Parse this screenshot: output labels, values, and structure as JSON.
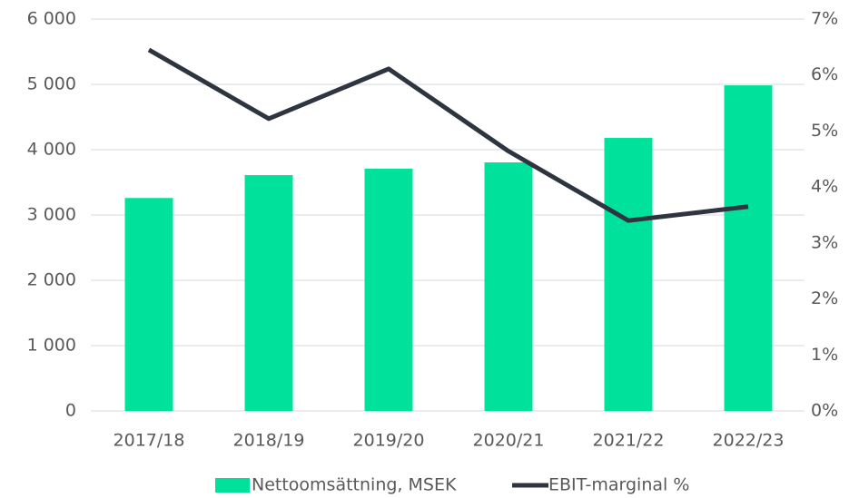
{
  "chart_data": {
    "type": "bar_line",
    "categories": [
      "2017/18",
      "2018/19",
      "2019/20",
      "2020/21",
      "2021/22",
      "2022/23"
    ],
    "series": [
      {
        "name": "Nettoomsättning, MSEK",
        "type": "bar",
        "color": "#00e29b",
        "values": [
          3260,
          3610,
          3710,
          3805,
          4180,
          4985
        ]
      },
      {
        "name": "EBIT-marginal %",
        "type": "line",
        "axis": "y2",
        "color": "#2e3540",
        "values": [
          6.45,
          5.22,
          6.11,
          4.64,
          3.4,
          3.65
        ]
      }
    ],
    "ylim": [
      0,
      6000
    ],
    "yticks": [
      0,
      {
        "value": 1000,
        "label": "1 000"
      },
      {
        "value": 2000,
        "label": "2 000"
      },
      {
        "value": 3000,
        "label": "3 000"
      },
      {
        "value": 4000,
        "label": "4 000"
      },
      {
        "value": 5000,
        "label": "5 000"
      },
      {
        "value": 6000,
        "label": "6 000"
      }
    ],
    "y2lim": [
      0,
      7
    ],
    "y2ticks": [
      {
        "value": 0,
        "label": "0%"
      },
      {
        "value": 1,
        "label": "1%"
      },
      {
        "value": 2,
        "label": "2%"
      },
      {
        "value": 3,
        "label": "3%"
      },
      {
        "value": 4,
        "label": "4%"
      },
      {
        "value": 5,
        "label": "5%"
      },
      {
        "value": 6,
        "label": "6%"
      },
      {
        "value": 7,
        "label": "7%"
      }
    ],
    "grid": true,
    "legend": "bottom"
  }
}
